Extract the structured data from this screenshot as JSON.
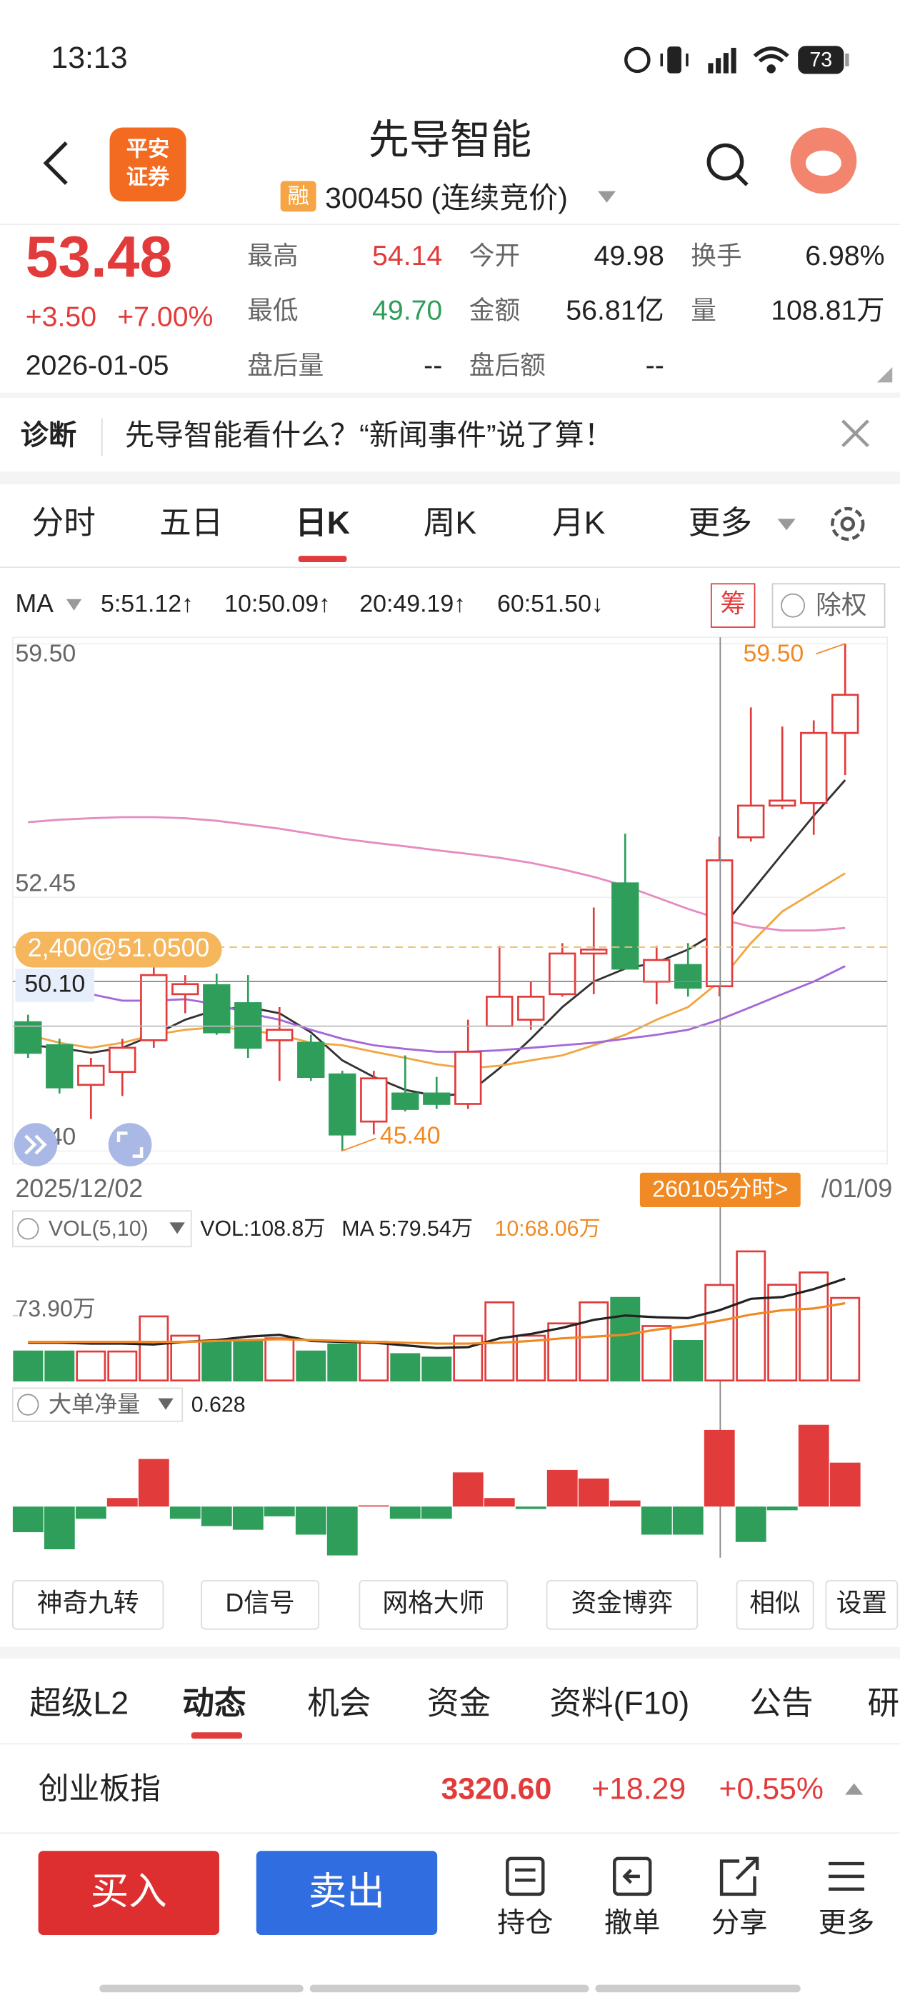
{
  "status_bar": {
    "time": "13:13",
    "battery": "73"
  },
  "header": {
    "logo": [
      "平安",
      "证券"
    ],
    "title": "先导智能",
    "tag": "融",
    "code": "300450 (连续竞价)"
  },
  "quote": {
    "price": "53.48",
    "change": "+3.50",
    "change_pct": "+7.00%",
    "date": "2026-01-05",
    "fields": [
      {
        "label": "最高",
        "value": "54.14"
      },
      {
        "label": "今开",
        "value": "49.98"
      },
      {
        "label": "换手",
        "value": "6.98%"
      },
      {
        "label": "最低",
        "value": "49.70"
      },
      {
        "label": "金额",
        "value": "56.81亿"
      },
      {
        "label": "量",
        "value": "108.81万"
      },
      {
        "label": "盘后量",
        "value": "--"
      },
      {
        "label": "盘后额",
        "value": "--"
      }
    ]
  },
  "notice": {
    "label": "诊断",
    "text": "先导智能看什么？“新闻事件”说了算！"
  },
  "tabs": [
    "分时",
    "五日",
    "日K",
    "周K",
    "月K",
    "更多"
  ],
  "ma_legend": {
    "label": "MA",
    "items": [
      "5:51.12↑",
      "10:50.09↑",
      "20:49.19↑",
      "60:51.50↓"
    ],
    "chou": "筹",
    "chuquan": "除权"
  },
  "kline": {
    "type": "candlestick",
    "ylim": [
      45.4,
      59.5
    ],
    "yticks": [
      {
        "value": 59.5,
        "label": "59.50"
      },
      {
        "value": 52.45,
        "label": "52.45"
      },
      {
        "value": 45.4,
        "label": "45.40"
      }
    ],
    "open": [
      48.98,
      48.34,
      47.24,
      47.6,
      48.48,
      49.76,
      50.01,
      49.51,
      48.48,
      48.41,
      47.53,
      46.22,
      47.0,
      47.0,
      46.71,
      48.87,
      49.05,
      49.76,
      50.89,
      52.84,
      50.11,
      50.57,
      49.98,
      54.12,
      55.0,
      55.07,
      57.02
    ],
    "high": [
      49.19,
      48.52,
      47.99,
      48.52,
      50.54,
      50.29,
      50.33,
      50.29,
      49.4,
      48.63,
      47.63,
      47.63,
      48.06,
      47.46,
      49.05,
      51.1,
      50.11,
      51.18,
      52.17,
      54.22,
      51.1,
      51.18,
      54.14,
      57.73,
      57.2,
      57.37,
      59.5
    ],
    "low": [
      47.99,
      47.0,
      46.29,
      46.93,
      48.27,
      49.23,
      48.63,
      47.99,
      47.35,
      47.35,
      45.4,
      45.86,
      46.5,
      46.57,
      46.57,
      48.87,
      48.77,
      49.69,
      49.76,
      50.47,
      49.48,
      49.69,
      49.7,
      54.0,
      54.9,
      54.19,
      55.85
    ],
    "close": [
      48.13,
      47.17,
      47.77,
      48.27,
      50.29,
      50.04,
      48.7,
      48.27,
      48.77,
      47.46,
      45.86,
      47.42,
      46.57,
      46.71,
      48.16,
      49.69,
      49.69,
      50.89,
      51.0,
      50.47,
      50.71,
      49.94,
      53.48,
      55.0,
      55.14,
      57.02,
      58.08
    ],
    "ma": [
      {
        "color": "#333333",
        "values": [
          48.34,
          48.27,
          48.13,
          48.27,
          48.63,
          49.05,
          49.33,
          49.4,
          49.23,
          48.7,
          47.92,
          47.46,
          47.1,
          46.93,
          47.0,
          47.7,
          48.52,
          49.4,
          50.11,
          50.47,
          50.64,
          51.0,
          51.53,
          52.59,
          53.66,
          54.72,
          55.71
        ]
      },
      {
        "color": "#f0a742",
        "values": [
          48.63,
          48.41,
          48.27,
          48.41,
          48.63,
          48.77,
          48.84,
          48.77,
          48.63,
          48.41,
          48.34,
          48.16,
          47.99,
          47.81,
          47.7,
          47.77,
          47.92,
          48.06,
          48.34,
          48.63,
          49.05,
          49.4,
          50.11,
          51.18,
          52.06,
          52.59,
          53.12
        ]
      },
      {
        "color": "#a468d8",
        "values": [
          50.11,
          49.94,
          49.76,
          49.58,
          49.58,
          49.62,
          49.48,
          49.23,
          49.05,
          48.77,
          48.52,
          48.34,
          48.24,
          48.16,
          48.16,
          48.2,
          48.27,
          48.34,
          48.41,
          48.52,
          48.63,
          48.77,
          49.05,
          49.4,
          49.76,
          50.11,
          50.54
        ]
      },
      {
        "color": "#e68cc0",
        "values": [
          54.54,
          54.61,
          54.65,
          54.68,
          54.68,
          54.65,
          54.58,
          54.47,
          54.36,
          54.22,
          54.08,
          53.97,
          53.87,
          53.76,
          53.66,
          53.55,
          53.41,
          53.23,
          53.02,
          52.77,
          52.45,
          52.13,
          51.85,
          51.64,
          51.53,
          51.53,
          51.6
        ]
      }
    ],
    "annotations": {
      "max": "59.50",
      "min": "45.40",
      "order": "2,400@51.0500",
      "cross": "50.10"
    },
    "x_labels": {
      "start": "2025/12/02",
      "button": "260105分时>",
      "end": "/01/09"
    }
  },
  "volume": {
    "indicator": "VOL(5,10)",
    "value": "VOL:108.8万",
    "ma5": "MA 5:79.54万",
    "ma10": "10:68.06万",
    "ylim": [
      0,
      178.5
    ],
    "yticks": [
      {
        "value": 73.9,
        "label": "73.90万"
      }
    ],
    "values": [
      33,
      33,
      33,
      33,
      73,
      51,
      45,
      45,
      48,
      33,
      41,
      44,
      30,
      26,
      51,
      89,
      51,
      65,
      89,
      94,
      62,
      45,
      108.8,
      147,
      109,
      123,
      94
    ],
    "ma": [
      {
        "color": "#222222",
        "values": [
          43,
          43,
          42,
          42,
          41,
          44,
          46,
          50,
          52,
          45,
          44,
          43,
          40,
          37,
          38,
          48,
          53,
          60,
          69,
          74,
          72,
          71,
          80,
          93,
          95,
          104,
          116
        ]
      },
      {
        "color": "#f08a24",
        "values": [
          44,
          44,
          44,
          44,
          44,
          44,
          45,
          46,
          47,
          46,
          45,
          44,
          43,
          42,
          42,
          43,
          45,
          48,
          50,
          52,
          58,
          62,
          68,
          75,
          80,
          82,
          88
        ]
      }
    ]
  },
  "net": {
    "indicator": "大单净量",
    "value": "0.628",
    "ylim": [
      -0.45,
      0.73
    ],
    "values": [
      -0.21,
      -0.35,
      -0.1,
      0.07,
      0.39,
      -0.1,
      -0.16,
      -0.19,
      -0.08,
      -0.23,
      -0.4,
      0.01,
      -0.1,
      -0.1,
      0.28,
      0.07,
      -0.02,
      0.3,
      0.23,
      0.05,
      -0.23,
      -0.23,
      0.628,
      -0.29,
      -0.03,
      0.67,
      0.36
    ]
  },
  "tools": [
    "神奇九转",
    "D信号",
    "网格大师",
    "资金博弈",
    "相似",
    "设置"
  ],
  "bottom_tabs": [
    "超级L2",
    "动态",
    "机会",
    "资金",
    "资料(F10)",
    "公告",
    "研"
  ],
  "index": {
    "name": "创业板指",
    "value": "3320.60",
    "change": "+18.29",
    "change_pct": "+0.55%"
  },
  "actions": {
    "buy": "买入",
    "sell": "卖出",
    "items": [
      "持仓",
      "撤单",
      "分享",
      "更多"
    ]
  }
}
